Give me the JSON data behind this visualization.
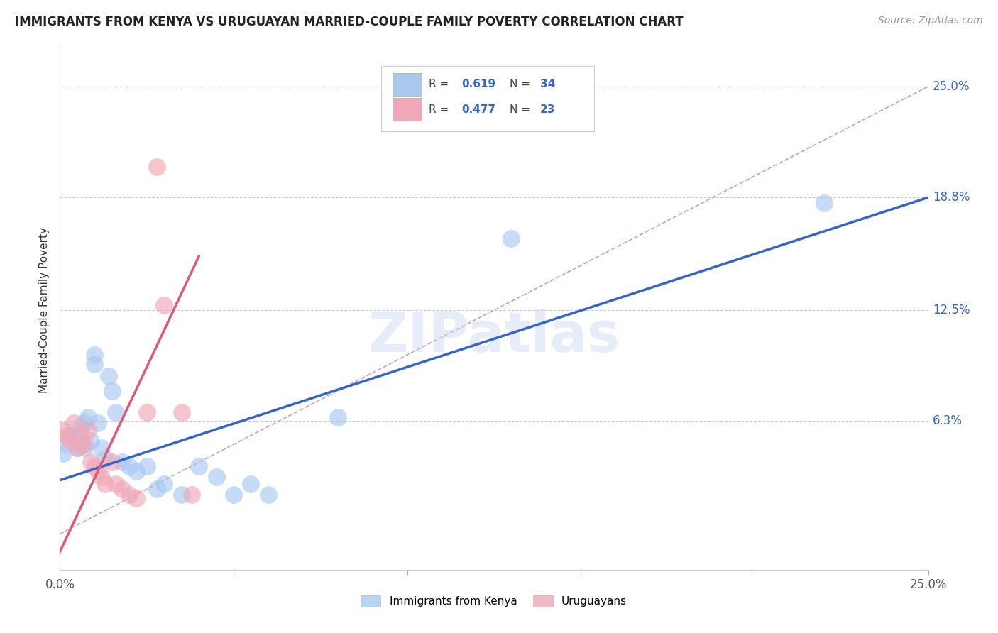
{
  "title": "IMMIGRANTS FROM KENYA VS URUGUAYAN MARRIED-COUPLE FAMILY POVERTY CORRELATION CHART",
  "source": "Source: ZipAtlas.com",
  "ylabel": "Married-Couple Family Poverty",
  "xlim": [
    0.0,
    0.25
  ],
  "ylim": [
    -0.02,
    0.27
  ],
  "ytick_labels_right": [
    "25.0%",
    "18.8%",
    "12.5%",
    "6.3%"
  ],
  "ytick_values_right": [
    0.25,
    0.188,
    0.125,
    0.063
  ],
  "r_blue": 0.619,
  "n_blue": 34,
  "r_pink": 0.477,
  "n_pink": 23,
  "blue_color": "#A8C8F0",
  "pink_color": "#F0A8B8",
  "line_blue": "#3366CC",
  "line_pink": "#E05878",
  "diagonal_color": "#D0A0A8",
  "watermark": "ZIPatlas",
  "blue_scatter_x": [
    0.001,
    0.002,
    0.003,
    0.004,
    0.005,
    0.006,
    0.006,
    0.007,
    0.007,
    0.008,
    0.009,
    0.01,
    0.01,
    0.011,
    0.012,
    0.013,
    0.014,
    0.015,
    0.016,
    0.018,
    0.02,
    0.022,
    0.025,
    0.028,
    0.03,
    0.035,
    0.04,
    0.045,
    0.05,
    0.055,
    0.06,
    0.08,
    0.13,
    0.22
  ],
  "blue_scatter_y": [
    0.045,
    0.05,
    0.055,
    0.055,
    0.048,
    0.06,
    0.05,
    0.062,
    0.048,
    0.065,
    0.052,
    0.1,
    0.095,
    0.062,
    0.048,
    0.042,
    0.088,
    0.08,
    0.068,
    0.04,
    0.038,
    0.035,
    0.038,
    0.025,
    0.028,
    0.022,
    0.038,
    0.032,
    0.022,
    0.028,
    0.022,
    0.065,
    0.165,
    0.185
  ],
  "pink_scatter_x": [
    0.001,
    0.002,
    0.003,
    0.004,
    0.005,
    0.006,
    0.007,
    0.008,
    0.009,
    0.01,
    0.011,
    0.012,
    0.013,
    0.015,
    0.016,
    0.018,
    0.02,
    0.022,
    0.025,
    0.028,
    0.03,
    0.035,
    0.038
  ],
  "pink_scatter_y": [
    0.058,
    0.055,
    0.052,
    0.062,
    0.048,
    0.055,
    0.05,
    0.058,
    0.04,
    0.038,
    0.035,
    0.032,
    0.028,
    0.04,
    0.028,
    0.025,
    0.022,
    0.02,
    0.068,
    0.205,
    0.128,
    0.068,
    0.022
  ],
  "blue_line_x0": 0.0,
  "blue_line_y0": 0.03,
  "blue_line_x1": 0.25,
  "blue_line_y1": 0.188,
  "pink_line_x0": 0.0,
  "pink_line_y0": -0.01,
  "pink_line_x1": 0.04,
  "pink_line_y1": 0.155
}
